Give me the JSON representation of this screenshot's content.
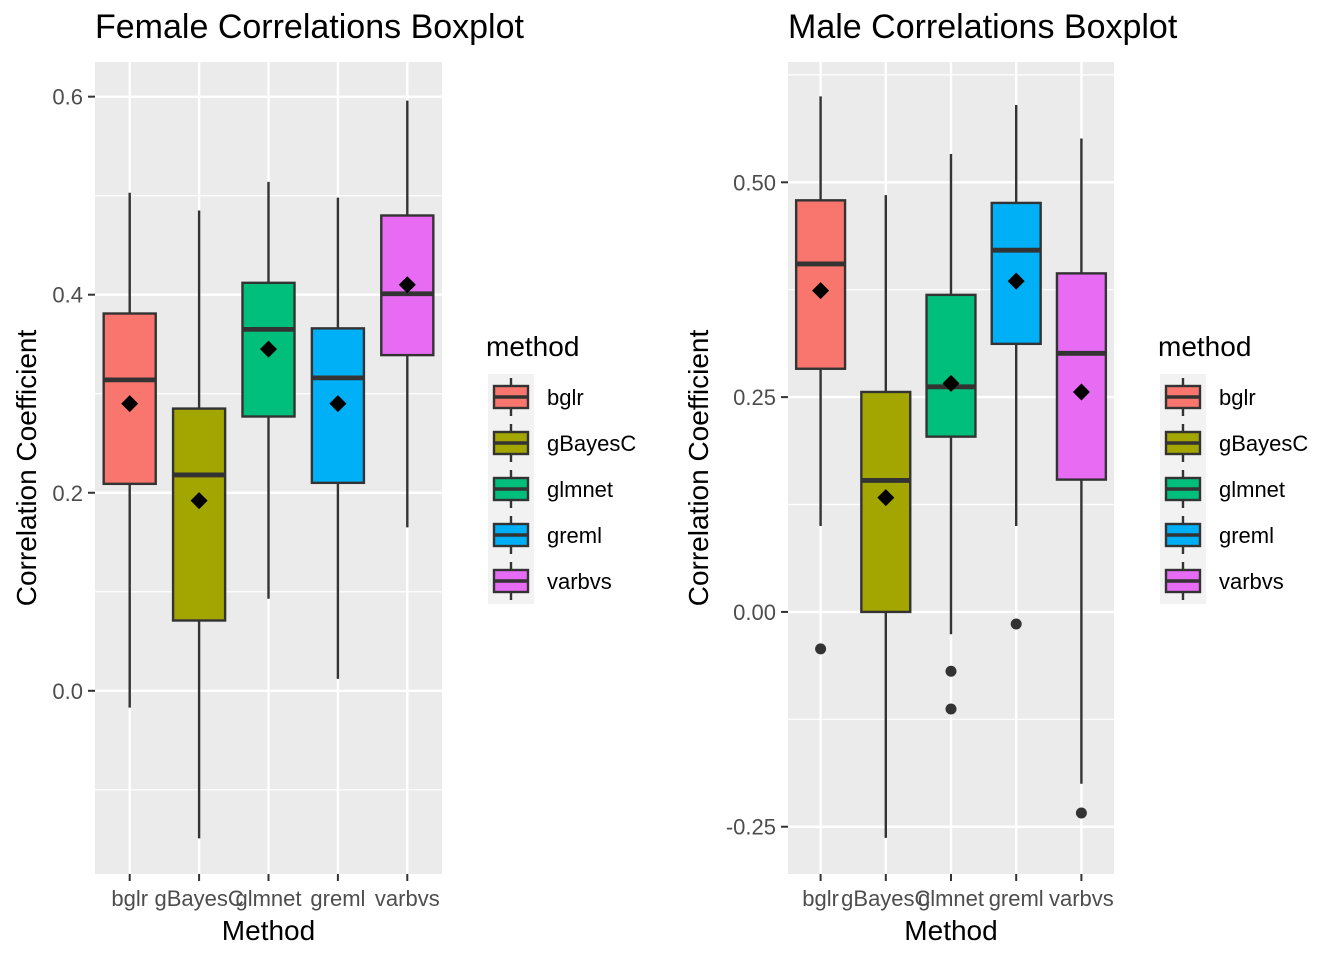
{
  "chart_data": [
    {
      "type": "boxplot",
      "title": "Female Correlations Boxplot",
      "xlabel": "Method",
      "ylabel": "Correlation Coefficient",
      "categories": [
        "bglr",
        "gBayesC",
        "glmnet",
        "greml",
        "varbvs"
      ],
      "y_ticks": [
        0.0,
        0.2,
        0.4,
        0.6
      ],
      "y_tick_labels": [
        "0.0",
        "0.2",
        "0.4",
        "0.6"
      ],
      "ylim": [
        -0.185,
        0.635
      ],
      "grid": true,
      "legend": {
        "title": "method",
        "position": "right",
        "entries": [
          "bglr",
          "gBayesC",
          "glmnet",
          "greml",
          "varbvs"
        ]
      },
      "boxes": [
        {
          "category": "bglr",
          "whisker_low": -0.017,
          "q1": 0.209,
          "median": 0.314,
          "q3": 0.381,
          "whisker_high": 0.503,
          "mean": 0.29,
          "outliers": []
        },
        {
          "category": "gBayesC",
          "whisker_low": -0.149,
          "q1": 0.071,
          "median": 0.218,
          "q3": 0.285,
          "whisker_high": 0.485,
          "mean": 0.192,
          "outliers": []
        },
        {
          "category": "glmnet",
          "whisker_low": 0.093,
          "q1": 0.277,
          "median": 0.365,
          "q3": 0.412,
          "whisker_high": 0.514,
          "mean": 0.345,
          "outliers": []
        },
        {
          "category": "greml",
          "whisker_low": 0.012,
          "q1": 0.21,
          "median": 0.316,
          "q3": 0.366,
          "whisker_high": 0.498,
          "mean": 0.29,
          "outliers": []
        },
        {
          "category": "varbvs",
          "whisker_low": 0.165,
          "q1": 0.339,
          "median": 0.401,
          "q3": 0.48,
          "whisker_high": 0.596,
          "mean": 0.41,
          "outliers": []
        }
      ]
    },
    {
      "type": "boxplot",
      "title": "Male Correlations Boxplot",
      "xlabel": "Method",
      "ylabel": "Correlation Coefficient",
      "categories": [
        "bglr",
        "gBayesC",
        "glmnet",
        "greml",
        "varbvs"
      ],
      "y_ticks": [
        -0.25,
        0.0,
        0.25,
        0.5
      ],
      "y_tick_labels": [
        "-0.25",
        "0.00",
        "0.25",
        "0.50"
      ],
      "ylim": [
        -0.305,
        0.64
      ],
      "grid": true,
      "legend": {
        "title": "method",
        "position": "right",
        "entries": [
          "bglr",
          "gBayesC",
          "glmnet",
          "greml",
          "varbvs"
        ]
      },
      "boxes": [
        {
          "category": "bglr",
          "whisker_low": 0.1,
          "q1": 0.283,
          "median": 0.405,
          "q3": 0.479,
          "whisker_high": 0.6,
          "mean": 0.374,
          "outliers": [
            -0.043
          ]
        },
        {
          "category": "gBayesC",
          "whisker_low": -0.263,
          "q1": 0.0,
          "median": 0.153,
          "q3": 0.256,
          "whisker_high": 0.485,
          "mean": 0.133,
          "outliers": []
        },
        {
          "category": "glmnet",
          "whisker_low": -0.026,
          "q1": 0.204,
          "median": 0.262,
          "q3": 0.369,
          "whisker_high": 0.533,
          "mean": 0.266,
          "outliers": [
            -0.069,
            -0.113
          ]
        },
        {
          "category": "greml",
          "whisker_low": 0.1,
          "q1": 0.312,
          "median": 0.421,
          "q3": 0.476,
          "whisker_high": 0.59,
          "mean": 0.385,
          "outliers": [
            -0.014
          ]
        },
        {
          "category": "varbvs",
          "whisker_low": -0.2,
          "q1": 0.154,
          "median": 0.301,
          "q3": 0.394,
          "whisker_high": 0.551,
          "mean": 0.256,
          "outliers": [
            -0.234
          ]
        }
      ]
    }
  ],
  "colors": {
    "bglr": "#F8766D",
    "gBayesC": "#A3A500",
    "glmnet": "#00BF7D",
    "greml": "#00B0F6",
    "varbvs": "#E76BF3",
    "panel": "#EBEBEB",
    "grid": "#FFFFFF",
    "box_stroke": "#333333",
    "tick_text": "#4D4D4D"
  }
}
